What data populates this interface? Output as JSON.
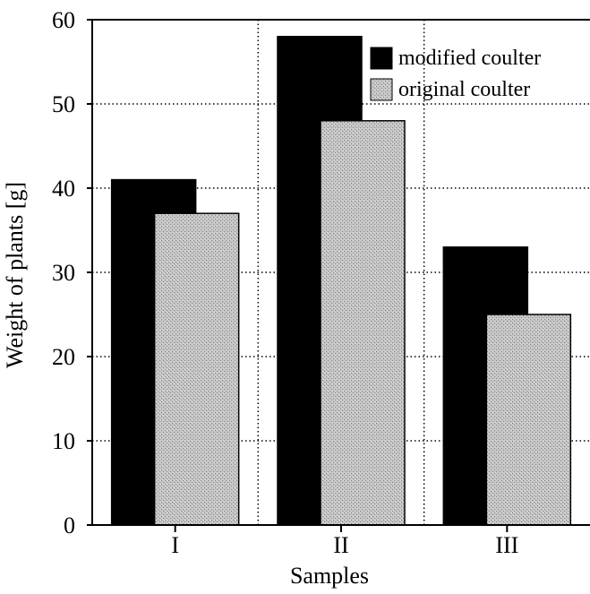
{
  "chart_data": {
    "type": "bar",
    "xlabel": "Samples",
    "ylabel": "Weight of plants [g]",
    "ylim": [
      0,
      60
    ],
    "yticks": [
      0,
      10,
      20,
      30,
      40,
      50,
      60
    ],
    "categories": [
      "I",
      "II",
      "III"
    ],
    "series": [
      {
        "name": "modified coulter",
        "values": [
          41,
          58,
          33
        ],
        "color": "#000000"
      },
      {
        "name": "original coulter",
        "values": [
          37,
          48,
          25
        ],
        "color": "#b8b8b8"
      }
    ],
    "grid": true,
    "legend_position": "top-right"
  }
}
